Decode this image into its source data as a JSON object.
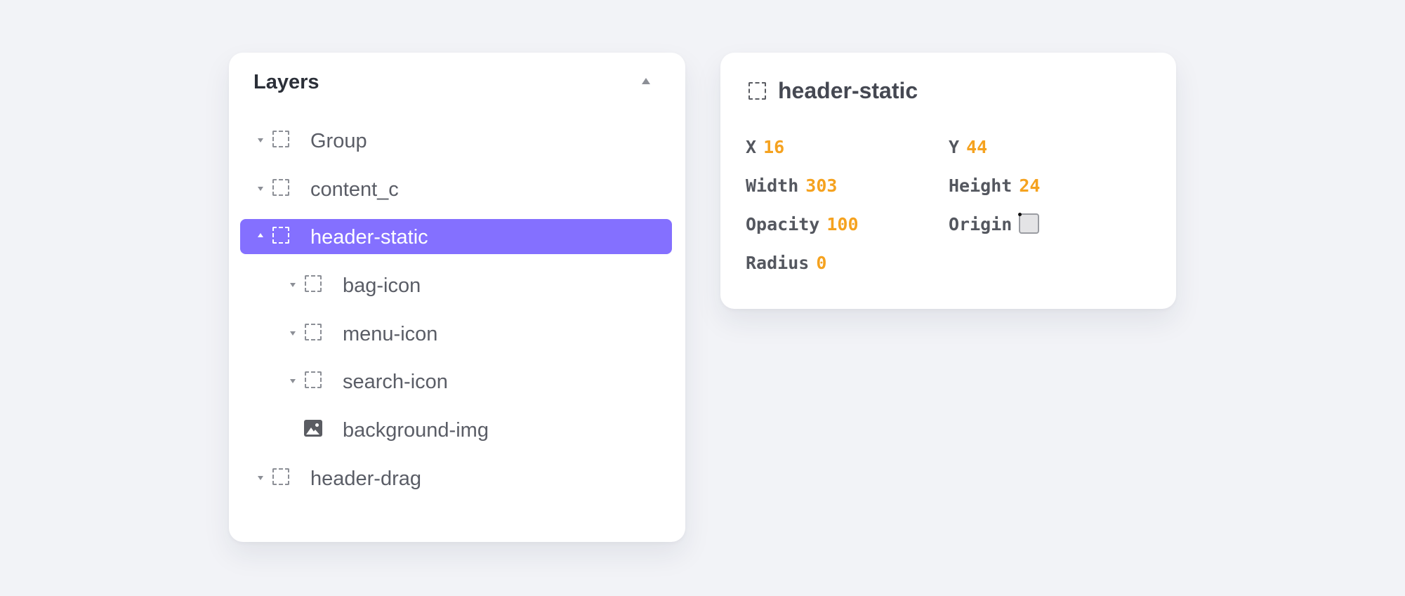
{
  "layers_panel": {
    "title": "Layers",
    "items": [
      {
        "label": "Group",
        "icon": "frame-icon",
        "chevron": "down",
        "indent": 0,
        "selected": false
      },
      {
        "label": "content_c",
        "icon": "frame-icon",
        "chevron": "down",
        "indent": 0,
        "selected": false
      },
      {
        "label": "header-static",
        "icon": "frame-icon",
        "chevron": "up",
        "indent": 0,
        "selected": true
      },
      {
        "label": "bag-icon",
        "icon": "frame-icon",
        "chevron": "down",
        "indent": 1,
        "selected": false
      },
      {
        "label": "menu-icon",
        "icon": "frame-icon",
        "chevron": "down",
        "indent": 1,
        "selected": false
      },
      {
        "label": "search-icon",
        "icon": "frame-icon",
        "chevron": "down",
        "indent": 1,
        "selected": false
      },
      {
        "label": "background-img",
        "icon": "image-icon",
        "chevron": "none",
        "indent": 1,
        "selected": false
      },
      {
        "label": "header-drag",
        "icon": "frame-icon",
        "chevron": "down",
        "indent": 0,
        "selected": false
      }
    ]
  },
  "properties_panel": {
    "title": "header-static",
    "x_label": "X",
    "x_value": "16",
    "y_label": "Y",
    "y_value": "44",
    "width_label": "Width",
    "width_value": "303",
    "height_label": "Height",
    "height_value": "24",
    "opacity_label": "Opacity",
    "opacity_value": "100",
    "origin_label": "Origin",
    "radius_label": "Radius",
    "radius_value": "0"
  },
  "colors": {
    "background": "#f2f3f7",
    "selection": "#8470ff",
    "value_accent": "#f5a21f"
  }
}
